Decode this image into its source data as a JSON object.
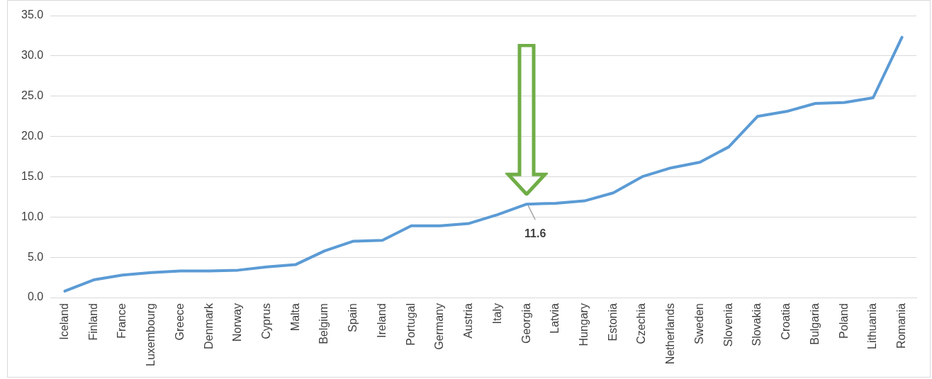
{
  "chart_data": {
    "type": "line",
    "categories": [
      "Iceland",
      "Finland",
      "France",
      "Luxembourg",
      "Greece",
      "Denmark",
      "Norway",
      "Cyprus",
      "Malta",
      "Belgium",
      "Spain",
      "Ireland",
      "Portugal",
      "Germany",
      "Austria",
      "Italy",
      "Georgia",
      "Latvia",
      "Hungary",
      "Estonia",
      "Czechia",
      "Netherlands",
      "Sweden",
      "Slovenia",
      "Slovakia",
      "Croatia",
      "Bulgaria",
      "Poland",
      "Lithuania",
      "Romania"
    ],
    "series": [
      {
        "color": "#5b9bd5",
        "values": [
          0.8,
          2.2,
          2.8,
          3.1,
          3.3,
          3.3,
          3.4,
          3.8,
          4.1,
          5.8,
          7.0,
          7.1,
          8.9,
          8.9,
          9.2,
          10.3,
          11.6,
          11.7,
          12.0,
          13.0,
          15.0,
          16.1,
          16.8,
          18.7,
          22.5,
          23.1,
          24.1,
          24.2,
          24.8,
          32.3
        ]
      }
    ],
    "ylim": [
      0,
      35
    ],
    "yticks": [
      {
        "value": 0,
        "label": "0.0"
      },
      {
        "value": 5,
        "label": "5.0"
      },
      {
        "value": 10,
        "label": "10.0"
      },
      {
        "value": 15,
        "label": "15.0"
      },
      {
        "value": 20,
        "label": "20.0"
      },
      {
        "value": 25,
        "label": "25.0"
      },
      {
        "value": 30,
        "label": "30.0"
      },
      {
        "value": 35,
        "label": "35.0"
      }
    ],
    "grid": "y",
    "legend": false,
    "marker": "none",
    "line_style": "solid",
    "annotations": [
      {
        "text": "11.6",
        "x": "Georgia",
        "y": 11.6
      }
    ]
  }
}
